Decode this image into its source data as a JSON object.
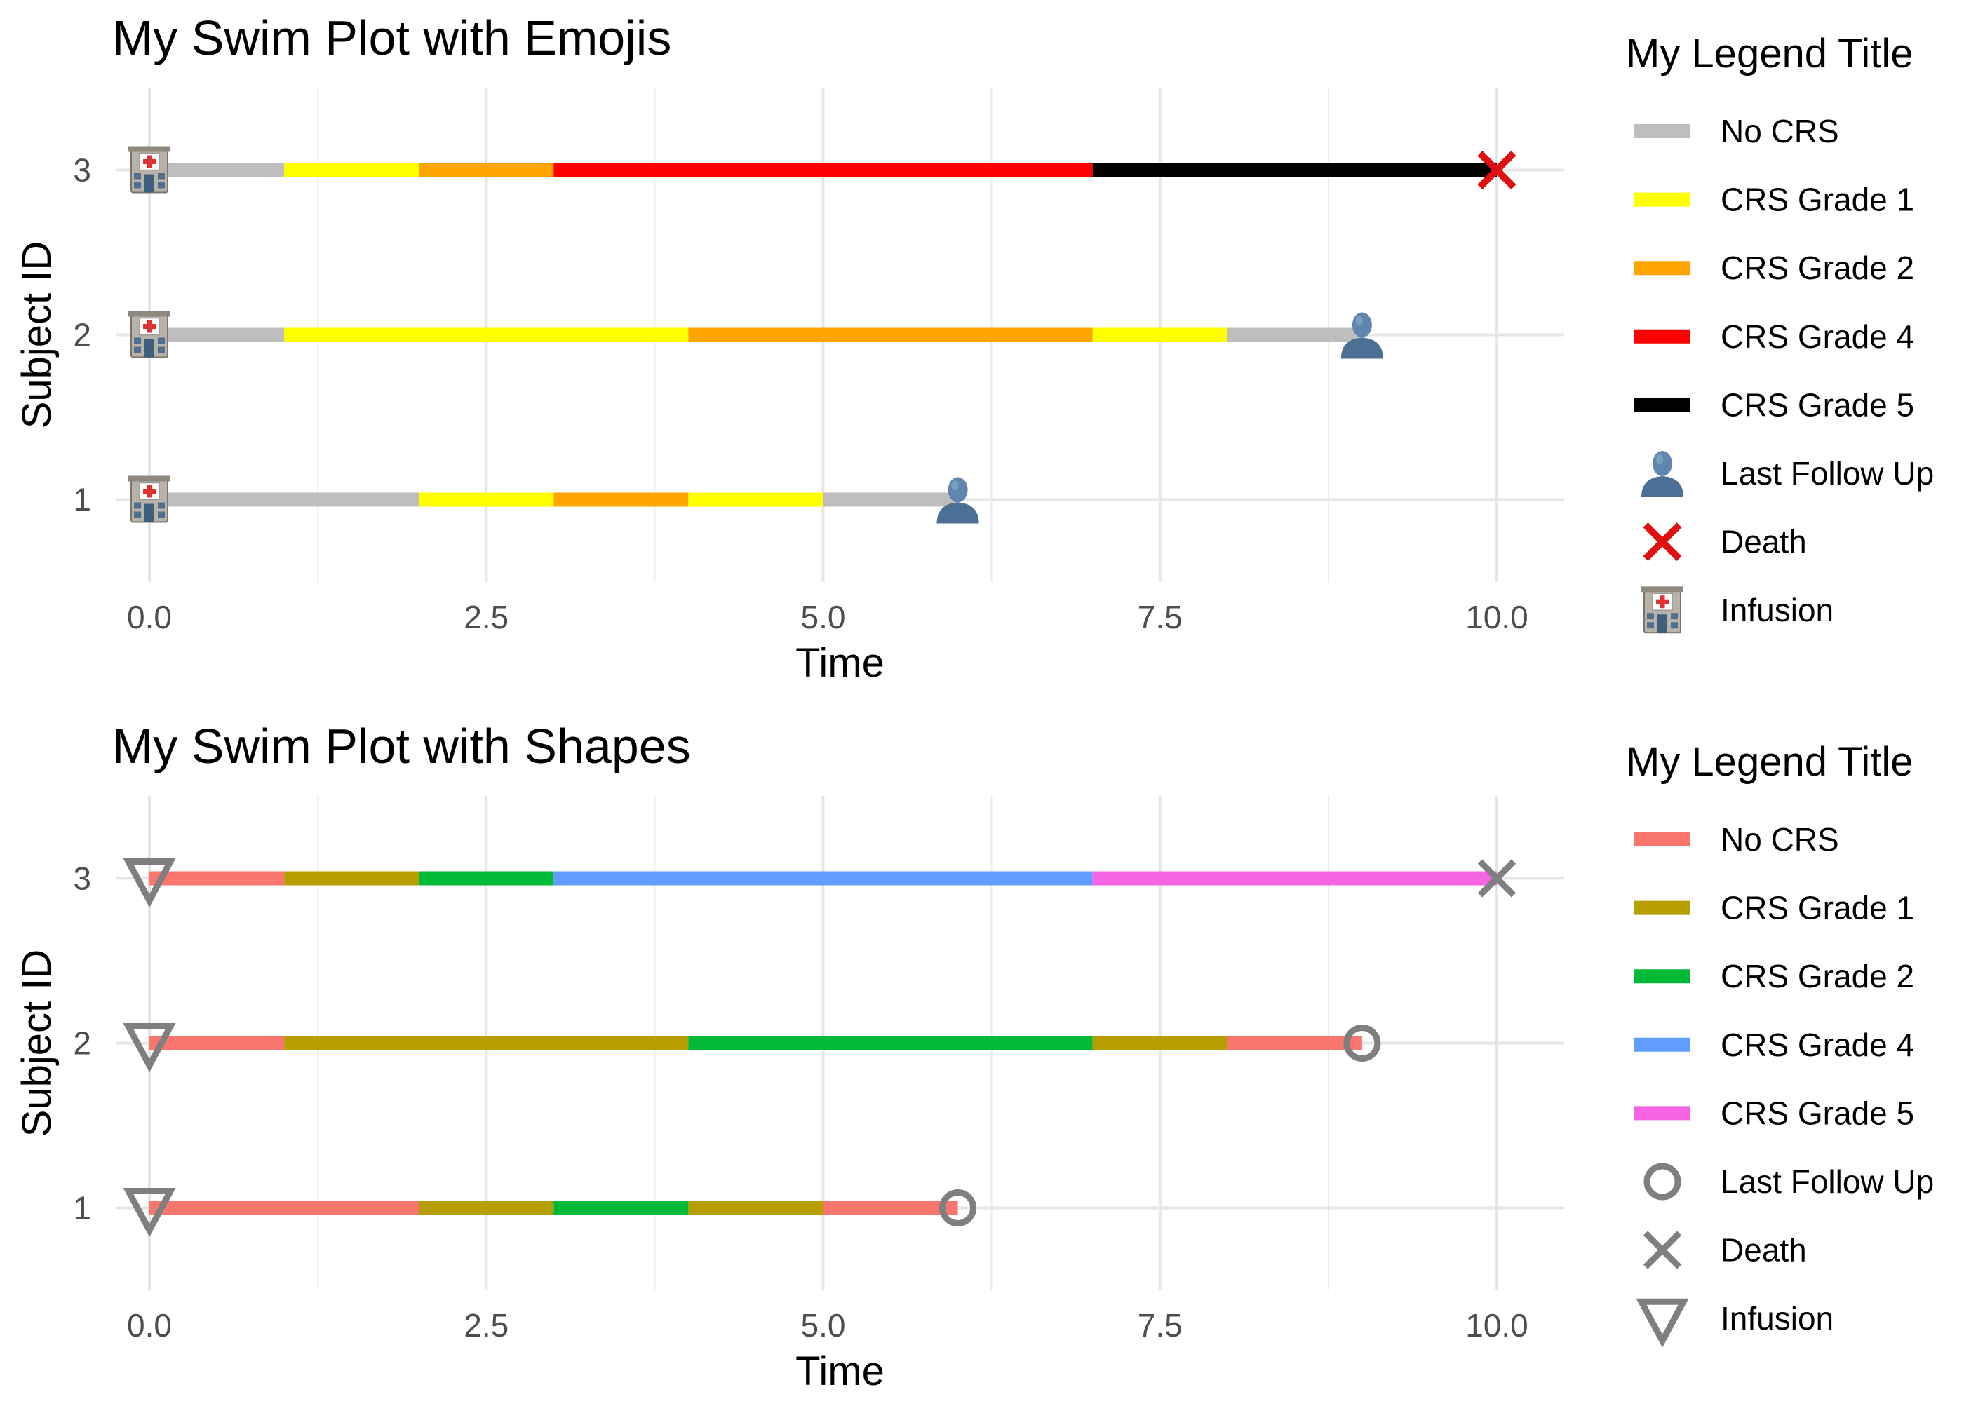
{
  "chart_data": [
    {
      "type": "swimmer",
      "title": "My Swim Plot with Emojis",
      "xlabel": "Time",
      "ylabel": "Subject ID",
      "xlim": [
        -0.25,
        10.5
      ],
      "ylim": [
        0.5,
        3.5
      ],
      "x_ticks": [
        0,
        2.5,
        5,
        7.5,
        10
      ],
      "x_tick_labels": [
        "0.0",
        "2.5",
        "5.0",
        "7.5",
        "10.0"
      ],
      "y_categories": [
        "1",
        "2",
        "3"
      ],
      "grid": true,
      "legend_placement": "right",
      "legend": {
        "title": "My Legend Title",
        "items": [
          {
            "label": "No CRS",
            "kind": "line",
            "color": "#BEBEBE"
          },
          {
            "label": "CRS Grade 1",
            "kind": "line",
            "color": "#FFFF00"
          },
          {
            "label": "CRS Grade 2",
            "kind": "line",
            "color": "#FFA500"
          },
          {
            "label": "CRS Grade 4",
            "kind": "line",
            "color": "#FF0000"
          },
          {
            "label": "CRS Grade 5",
            "kind": "line",
            "color": "#000000"
          },
          {
            "label": "Last Follow Up",
            "kind": "marker",
            "icon": "person-icon"
          },
          {
            "label": "Death",
            "kind": "marker",
            "icon": "red-x-icon"
          },
          {
            "label": "Infusion",
            "kind": "marker",
            "icon": "hospital-icon"
          }
        ]
      },
      "subjects": [
        {
          "id": "1",
          "segments": [
            {
              "start": 0,
              "end": 2,
              "status": "No CRS"
            },
            {
              "start": 2,
              "end": 3,
              "status": "CRS Grade 1"
            },
            {
              "start": 3,
              "end": 4,
              "status": "CRS Grade 2"
            },
            {
              "start": 4,
              "end": 5,
              "status": "CRS Grade 1"
            },
            {
              "start": 5,
              "end": 6,
              "status": "No CRS"
            }
          ],
          "events": [
            {
              "time": 0,
              "event": "Infusion"
            },
            {
              "time": 6,
              "event": "Last Follow Up"
            }
          ]
        },
        {
          "id": "2",
          "segments": [
            {
              "start": 0,
              "end": 1,
              "status": "No CRS"
            },
            {
              "start": 1,
              "end": 4,
              "status": "CRS Grade 1"
            },
            {
              "start": 4,
              "end": 7,
              "status": "CRS Grade 2"
            },
            {
              "start": 7,
              "end": 8,
              "status": "CRS Grade 1"
            },
            {
              "start": 8,
              "end": 9,
              "status": "No CRS"
            }
          ],
          "events": [
            {
              "time": 0,
              "event": "Infusion"
            },
            {
              "time": 9,
              "event": "Last Follow Up"
            }
          ]
        },
        {
          "id": "3",
          "segments": [
            {
              "start": 0,
              "end": 1,
              "status": "No CRS"
            },
            {
              "start": 1,
              "end": 2,
              "status": "CRS Grade 1"
            },
            {
              "start": 2,
              "end": 3,
              "status": "CRS Grade 2"
            },
            {
              "start": 3,
              "end": 7,
              "status": "CRS Grade 4"
            },
            {
              "start": 7,
              "end": 10,
              "status": "CRS Grade 5"
            }
          ],
          "events": [
            {
              "time": 0,
              "event": "Infusion"
            },
            {
              "time": 10,
              "event": "Death"
            }
          ]
        }
      ]
    },
    {
      "type": "swimmer",
      "title": "My Swim Plot with Shapes",
      "xlabel": "Time",
      "ylabel": "Subject ID",
      "xlim": [
        -0.25,
        10.5
      ],
      "ylim": [
        0.5,
        3.5
      ],
      "x_ticks": [
        0,
        2.5,
        5,
        7.5,
        10
      ],
      "x_tick_labels": [
        "0.0",
        "2.5",
        "5.0",
        "7.5",
        "10.0"
      ],
      "y_categories": [
        "1",
        "2",
        "3"
      ],
      "grid": true,
      "legend_placement": "right",
      "legend": {
        "title": "My Legend Title",
        "items": [
          {
            "label": "No CRS",
            "kind": "line",
            "color": "#F8766D"
          },
          {
            "label": "CRS Grade 1",
            "kind": "line",
            "color": "#B79F00"
          },
          {
            "label": "CRS Grade 2",
            "kind": "line",
            "color": "#00BA38"
          },
          {
            "label": "CRS Grade 4",
            "kind": "line",
            "color": "#619CFF"
          },
          {
            "label": "CRS Grade 5",
            "kind": "line",
            "color": "#F564E3"
          },
          {
            "label": "Last Follow Up",
            "kind": "marker",
            "icon": "circle-icon"
          },
          {
            "label": "Death",
            "kind": "marker",
            "icon": "x-icon"
          },
          {
            "label": "Infusion",
            "kind": "marker",
            "icon": "triangle-down-icon"
          }
        ]
      },
      "subjects": [
        {
          "id": "1",
          "segments": [
            {
              "start": 0,
              "end": 2,
              "status": "No CRS"
            },
            {
              "start": 2,
              "end": 3,
              "status": "CRS Grade 1"
            },
            {
              "start": 3,
              "end": 4,
              "status": "CRS Grade 2"
            },
            {
              "start": 4,
              "end": 5,
              "status": "CRS Grade 1"
            },
            {
              "start": 5,
              "end": 6,
              "status": "No CRS"
            }
          ],
          "events": [
            {
              "time": 0,
              "event": "Infusion"
            },
            {
              "time": 6,
              "event": "Last Follow Up"
            }
          ]
        },
        {
          "id": "2",
          "segments": [
            {
              "start": 0,
              "end": 1,
              "status": "No CRS"
            },
            {
              "start": 1,
              "end": 4,
              "status": "CRS Grade 1"
            },
            {
              "start": 4,
              "end": 7,
              "status": "CRS Grade 2"
            },
            {
              "start": 7,
              "end": 8,
              "status": "CRS Grade 1"
            },
            {
              "start": 8,
              "end": 9,
              "status": "No CRS"
            }
          ],
          "events": [
            {
              "time": 0,
              "event": "Infusion"
            },
            {
              "time": 9,
              "event": "Last Follow Up"
            }
          ]
        },
        {
          "id": "3",
          "segments": [
            {
              "start": 0,
              "end": 1,
              "status": "No CRS"
            },
            {
              "start": 1,
              "end": 2,
              "status": "CRS Grade 1"
            },
            {
              "start": 2,
              "end": 3,
              "status": "CRS Grade 2"
            },
            {
              "start": 3,
              "end": 7,
              "status": "CRS Grade 4"
            },
            {
              "start": 7,
              "end": 10,
              "status": "CRS Grade 5"
            }
          ],
          "events": [
            {
              "time": 0,
              "event": "Infusion"
            },
            {
              "time": 10,
              "event": "Death"
            }
          ]
        }
      ]
    }
  ]
}
